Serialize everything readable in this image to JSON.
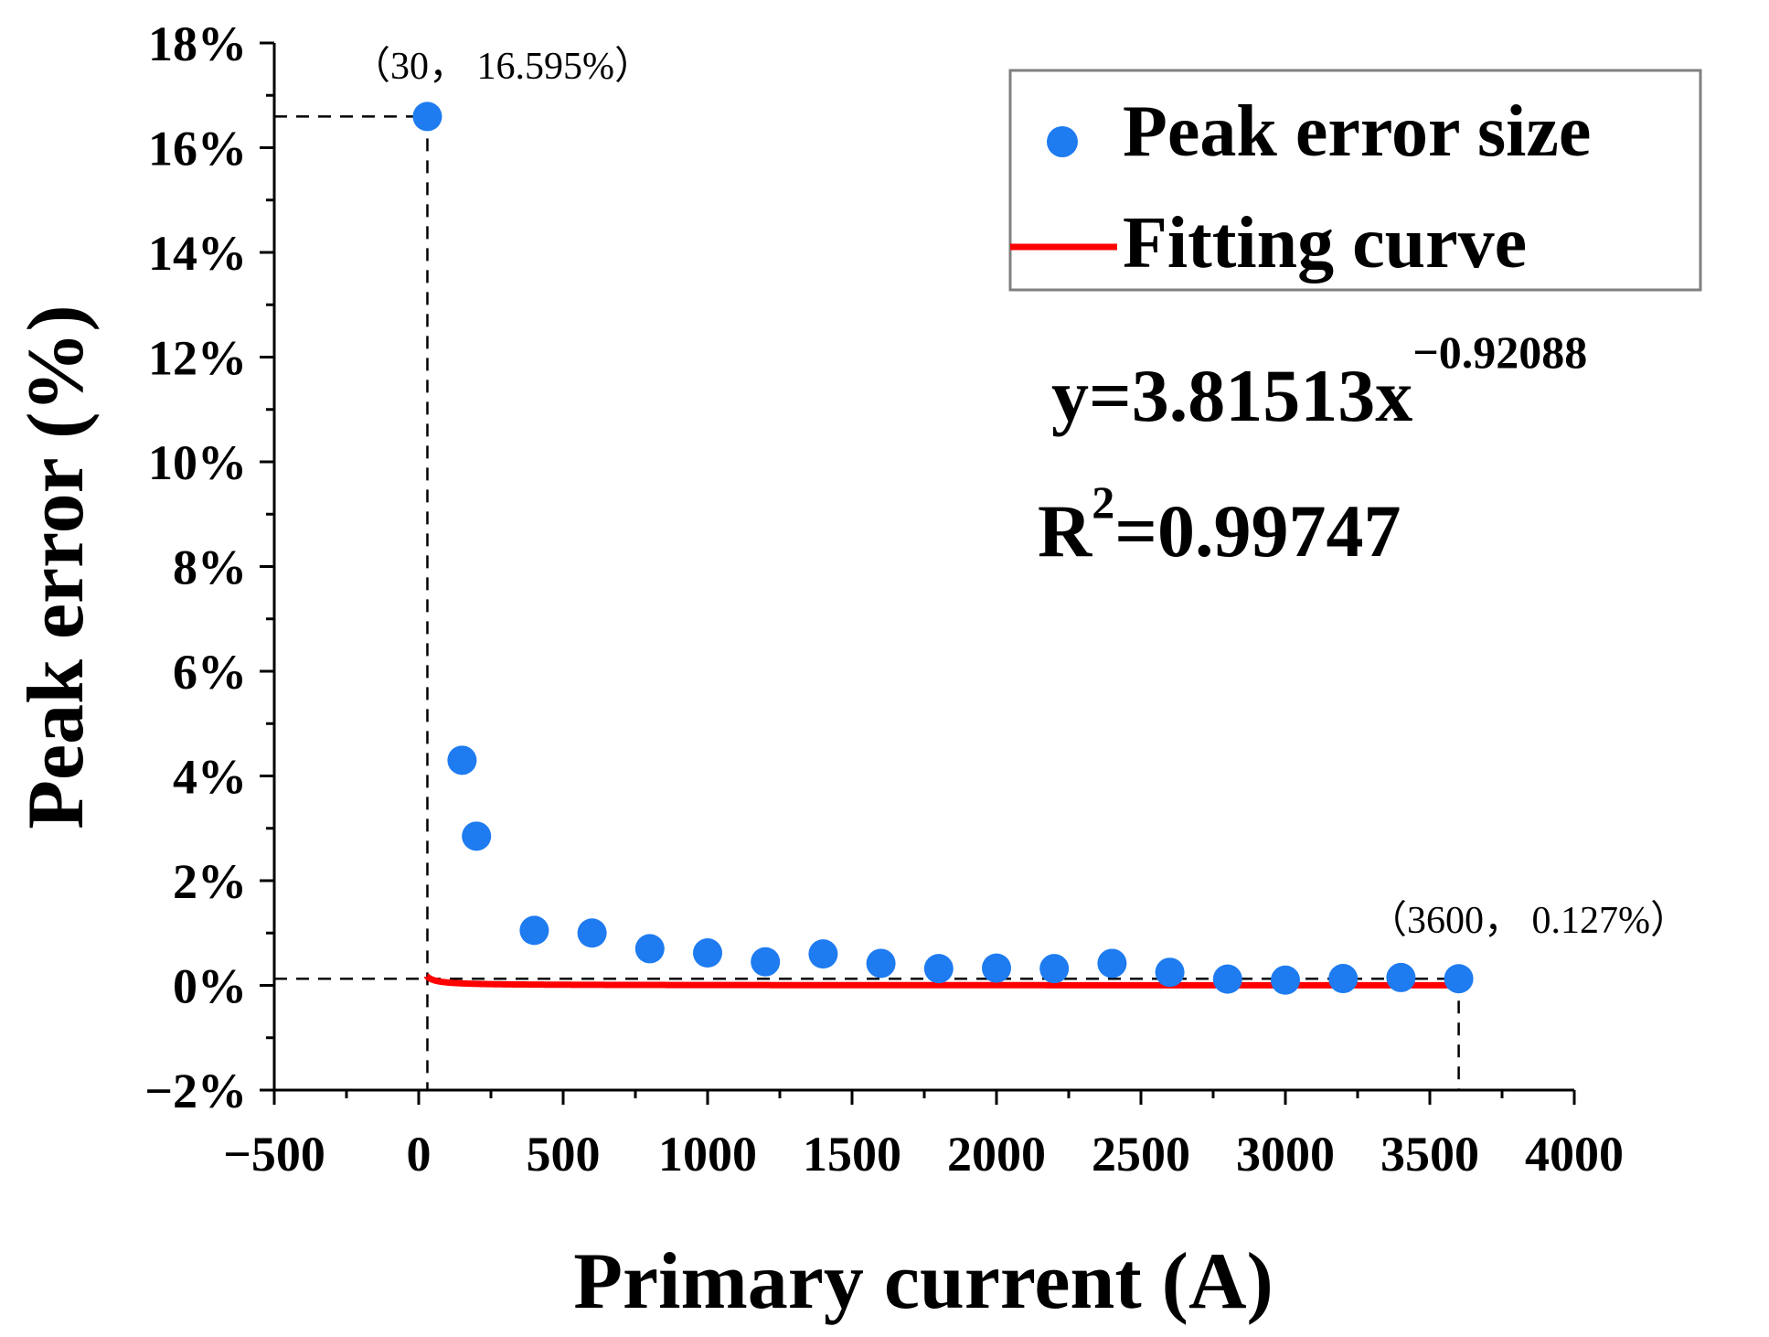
{
  "chart_data": {
    "type": "scatter",
    "title": "",
    "xlabel": "Primary current (A)",
    "ylabel": "Peak error (%)",
    "xlim": [
      -500,
      4000
    ],
    "ylim": [
      -2,
      18
    ],
    "x_ticks": [
      -500,
      0,
      500,
      1000,
      1500,
      2000,
      2500,
      3000,
      3500,
      4000
    ],
    "x_tick_labels": [
      "−500",
      "0",
      "500",
      "1000",
      "1500",
      "2000",
      "2500",
      "3000",
      "3500",
      "4000"
    ],
    "y_ticks": [
      -2,
      0,
      2,
      4,
      6,
      8,
      10,
      12,
      14,
      16,
      18
    ],
    "y_tick_labels": [
      "−2%",
      "0%",
      "2%",
      "4%",
      "6%",
      "8%",
      "10%",
      "12%",
      "14%",
      "16%",
      "18%"
    ],
    "series": [
      {
        "name": "Peak error size",
        "kind": "scatter",
        "color": "#1e7bf0",
        "x": [
          30,
          150,
          200,
          400,
          600,
          800,
          1000,
          1200,
          1400,
          1600,
          1800,
          2000,
          2200,
          2400,
          2600,
          2800,
          3000,
          3200,
          3400,
          3600
        ],
        "y": [
          16.595,
          4.3,
          2.85,
          1.05,
          1.0,
          0.7,
          0.62,
          0.45,
          0.6,
          0.42,
          0.32,
          0.33,
          0.32,
          0.42,
          0.25,
          0.12,
          0.1,
          0.13,
          0.15,
          0.127
        ]
      },
      {
        "name": "Fitting curve",
        "kind": "line",
        "color": "#ff0000",
        "equation": {
          "a": 3.81513,
          "b": -0.92088
        },
        "x_range": [
          30,
          3600
        ]
      }
    ],
    "legend_position": "top-right",
    "annotations": {
      "equation_main": "y=3.81513x",
      "equation_exp": "−0.92088",
      "r2_main": "R",
      "r2_sup": "2",
      "r2_value": "=0.99747",
      "first_point": {
        "x": 30,
        "y": 16.595,
        "label": "（30， 16.595%）"
      },
      "last_point": {
        "x": 3600,
        "y": 0.127,
        "label": "（3600， 0.127%）"
      }
    }
  }
}
